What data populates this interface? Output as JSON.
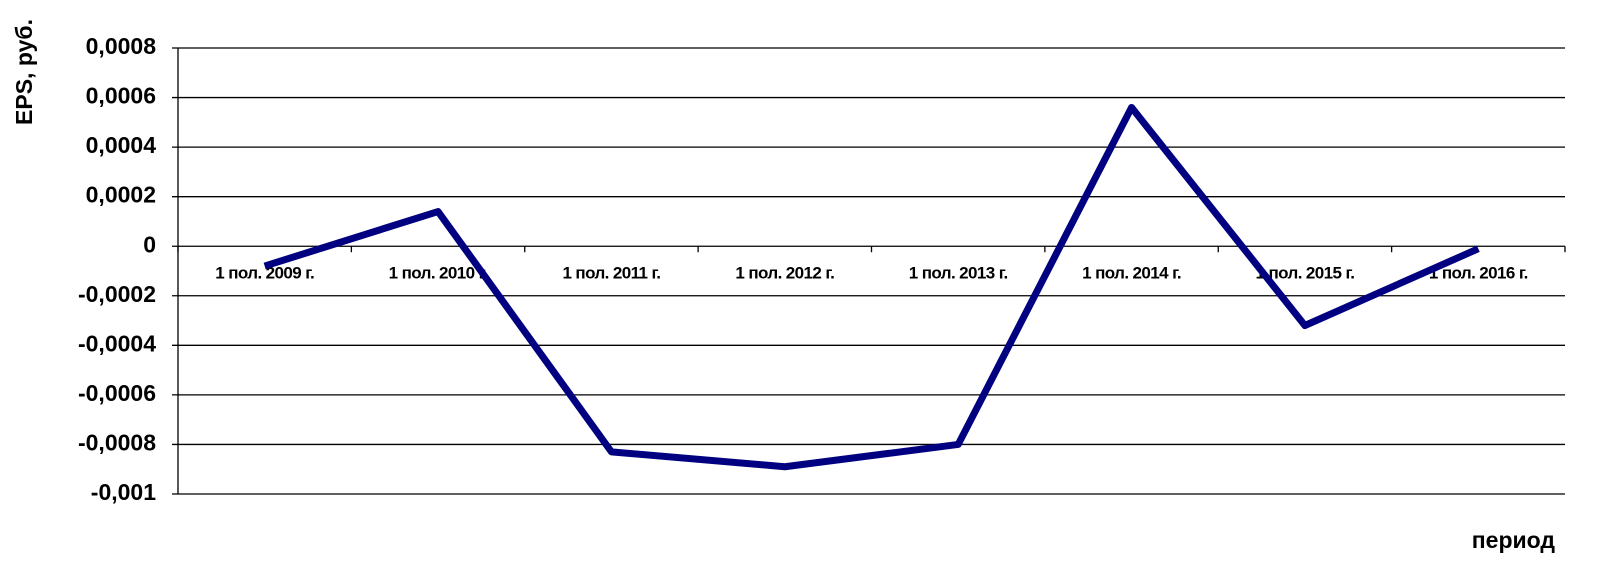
{
  "chart_data": {
    "type": "line",
    "y_label": "EPS, руб.",
    "x_label": "период",
    "categories": [
      "1 пол. 2009 г.",
      "1 пол. 2010 г.",
      "1 пол. 2011 г.",
      "1 пол. 2012 г.",
      "1 пол. 2013 г.",
      "1 пол. 2014 г.",
      "1 пол. 2015 г.",
      "1 пол. 2016 г."
    ],
    "series": [
      {
        "name": "EPS",
        "color": "#000080",
        "values": [
          -8e-05,
          0.00014,
          -0.00083,
          -0.00089,
          -0.0008,
          0.00056,
          -0.00032,
          -1e-05
        ]
      }
    ],
    "ylim": [
      -0.001,
      0.0008
    ],
    "yticks": [
      {
        "value": -0.001,
        "label": "-0,001"
      },
      {
        "value": -0.0008,
        "label": "-0,0008"
      },
      {
        "value": -0.0006,
        "label": "-0,0006"
      },
      {
        "value": -0.0004,
        "label": "-0,0004"
      },
      {
        "value": -0.0002,
        "label": "-0,0002"
      },
      0,
      {
        "value": 0.0002,
        "label": "0,0002"
      },
      {
        "value": 0.0004,
        "label": "0,0004"
      },
      {
        "value": 0.0006,
        "label": "0,0006"
      },
      {
        "value": 0.0008,
        "label": "0,0008"
      }
    ],
    "grid": true
  }
}
